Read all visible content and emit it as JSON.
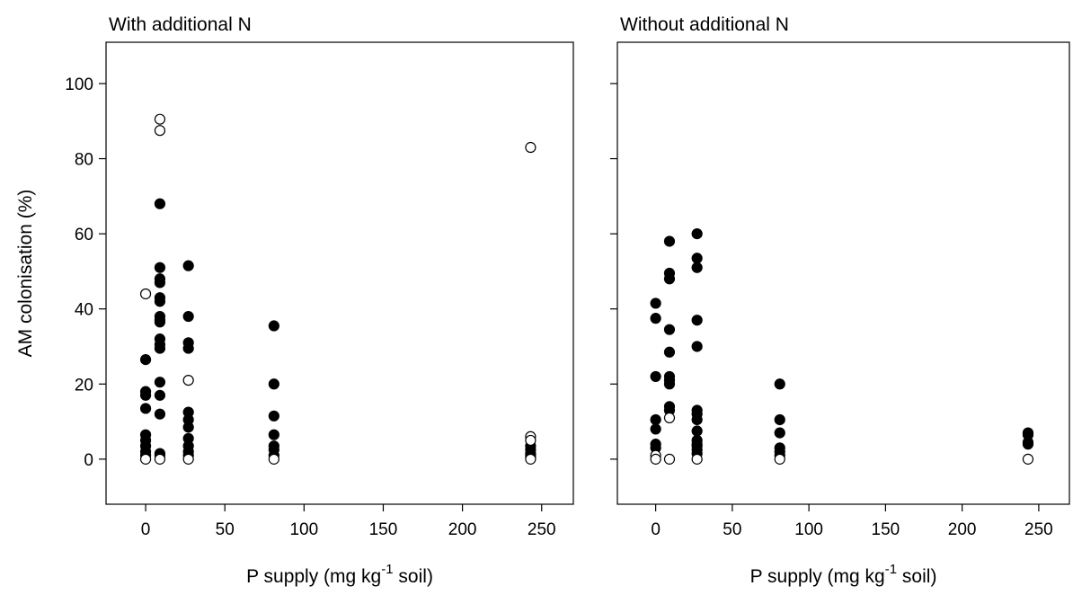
{
  "chart_data": [
    {
      "type": "scatter",
      "title": "With additional N",
      "xlabel": "P supply (mg kg",
      "xlabel_sup": "-1",
      "xlabel_tail": " soil)",
      "ylabel": "AM colonisation (%)",
      "xlim": [
        -25,
        270
      ],
      "ylim": [
        -12,
        111
      ],
      "xticks": [
        0,
        50,
        100,
        150,
        200,
        250
      ],
      "yticks": [
        0,
        20,
        40,
        60,
        80,
        100
      ],
      "series": [
        {
          "marker": "filled",
          "points": [
            [
              0,
              26.5
            ],
            [
              0,
              18
            ],
            [
              0,
              17
            ],
            [
              0,
              13.5
            ],
            [
              0,
              6.5
            ],
            [
              0,
              5
            ],
            [
              0,
              3.5
            ],
            [
              0,
              2
            ],
            [
              0,
              1
            ],
            [
              9,
              68
            ],
            [
              9,
              51
            ],
            [
              9,
              48
            ],
            [
              9,
              47
            ],
            [
              9,
              43
            ],
            [
              9,
              42
            ],
            [
              9,
              38
            ],
            [
              9,
              37
            ],
            [
              9,
              36.5
            ],
            [
              9,
              32
            ],
            [
              9,
              30.5
            ],
            [
              9,
              29.5
            ],
            [
              9,
              20.5
            ],
            [
              9,
              17
            ],
            [
              9,
              12
            ],
            [
              9,
              1.5
            ],
            [
              9,
              1
            ],
            [
              27,
              51.5
            ],
            [
              27,
              38
            ],
            [
              27,
              31
            ],
            [
              27,
              29.5
            ],
            [
              27,
              12.5
            ],
            [
              27,
              10.5
            ],
            [
              27,
              8.5
            ],
            [
              27,
              5.5
            ],
            [
              27,
              3.5
            ],
            [
              27,
              2
            ],
            [
              27,
              1
            ],
            [
              81,
              35.5
            ],
            [
              81,
              20
            ],
            [
              81,
              11.5
            ],
            [
              81,
              6.5
            ],
            [
              81,
              3.5
            ],
            [
              81,
              2.5
            ],
            [
              81,
              1
            ],
            [
              243,
              3.5
            ],
            [
              243,
              2.5
            ],
            [
              243,
              1.5
            ],
            [
              243,
              1
            ],
            [
              243,
              0.5
            ]
          ]
        },
        {
          "marker": "open",
          "points": [
            [
              0,
              44
            ],
            [
              0,
              0
            ],
            [
              9,
              90.5
            ],
            [
              9,
              87.5
            ],
            [
              9,
              0
            ],
            [
              27,
              21
            ],
            [
              27,
              0
            ],
            [
              81,
              0
            ],
            [
              243,
              83
            ],
            [
              243,
              6
            ],
            [
              243,
              5
            ],
            [
              243,
              0
            ]
          ]
        }
      ]
    },
    {
      "type": "scatter",
      "title": "Without additional N",
      "xlabel": "P supply (mg kg",
      "xlabel_sup": "-1",
      "xlabel_tail": " soil)",
      "xlim": [
        -25,
        270
      ],
      "ylim": [
        -12,
        111
      ],
      "xticks": [
        0,
        50,
        100,
        150,
        200,
        250
      ],
      "yticks": [
        0,
        20,
        40,
        60,
        80,
        100
      ],
      "series": [
        {
          "marker": "filled",
          "points": [
            [
              0,
              41.5
            ],
            [
              0,
              37.5
            ],
            [
              0,
              22
            ],
            [
              0,
              10.5
            ],
            [
              0,
              8
            ],
            [
              0,
              4
            ],
            [
              0,
              3
            ],
            [
              9,
              58
            ],
            [
              9,
              49.5
            ],
            [
              9,
              48
            ],
            [
              9,
              34.5
            ],
            [
              9,
              28.5
            ],
            [
              9,
              22
            ],
            [
              9,
              21
            ],
            [
              9,
              20
            ],
            [
              9,
              14
            ],
            [
              9,
              13
            ]
          ],
          "extra": []
        },
        {
          "marker": "filled",
          "points": [
            [
              27,
              60
            ],
            [
              27,
              53.5
            ],
            [
              27,
              51
            ],
            [
              27,
              37
            ],
            [
              27,
              30
            ],
            [
              27,
              13
            ],
            [
              27,
              12
            ],
            [
              27,
              10.5
            ],
            [
              27,
              7.5
            ],
            [
              27,
              5
            ],
            [
              27,
              4
            ],
            [
              27,
              3.5
            ],
            [
              27,
              2.5
            ],
            [
              27,
              1.5
            ],
            [
              81,
              20
            ],
            [
              81,
              10.5
            ],
            [
              81,
              7
            ],
            [
              81,
              3
            ],
            [
              81,
              2
            ],
            [
              81,
              1
            ],
            [
              243,
              7
            ],
            [
              243,
              6.5
            ],
            [
              243,
              4.5
            ],
            [
              243,
              4
            ]
          ]
        },
        {
          "marker": "open",
          "points": [
            [
              0,
              1
            ],
            [
              0,
              0
            ],
            [
              9,
              11
            ],
            [
              9,
              0
            ],
            [
              27,
              0
            ],
            [
              81,
              0
            ],
            [
              243,
              0
            ]
          ]
        }
      ]
    }
  ]
}
